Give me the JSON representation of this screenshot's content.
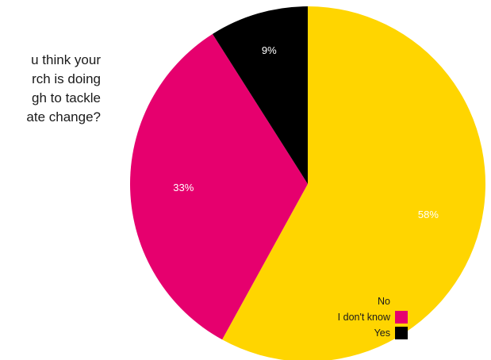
{
  "question": {
    "lines": [
      "u think your",
      "rch is doing",
      "gh to tackle",
      "ate change?"
    ]
  },
  "chart_data": {
    "type": "pie",
    "title": "",
    "slices": [
      {
        "name": "No",
        "value": 58,
        "label": "58%",
        "color": "#FFD500",
        "label_color": "#FFFFFF"
      },
      {
        "name": "I don't know",
        "value": 33,
        "label": "33%",
        "color": "#E6006E",
        "label_color": "#FFFFFF"
      },
      {
        "name": "Yes",
        "value": 9,
        "label": "9%",
        "color": "#000000",
        "label_color": "#FFFFFF"
      }
    ],
    "start_angle_deg": 0,
    "direction": "clockwise",
    "legend": {
      "position": "bottom-left",
      "entries": [
        "No",
        "I don't know",
        "Yes"
      ]
    }
  }
}
